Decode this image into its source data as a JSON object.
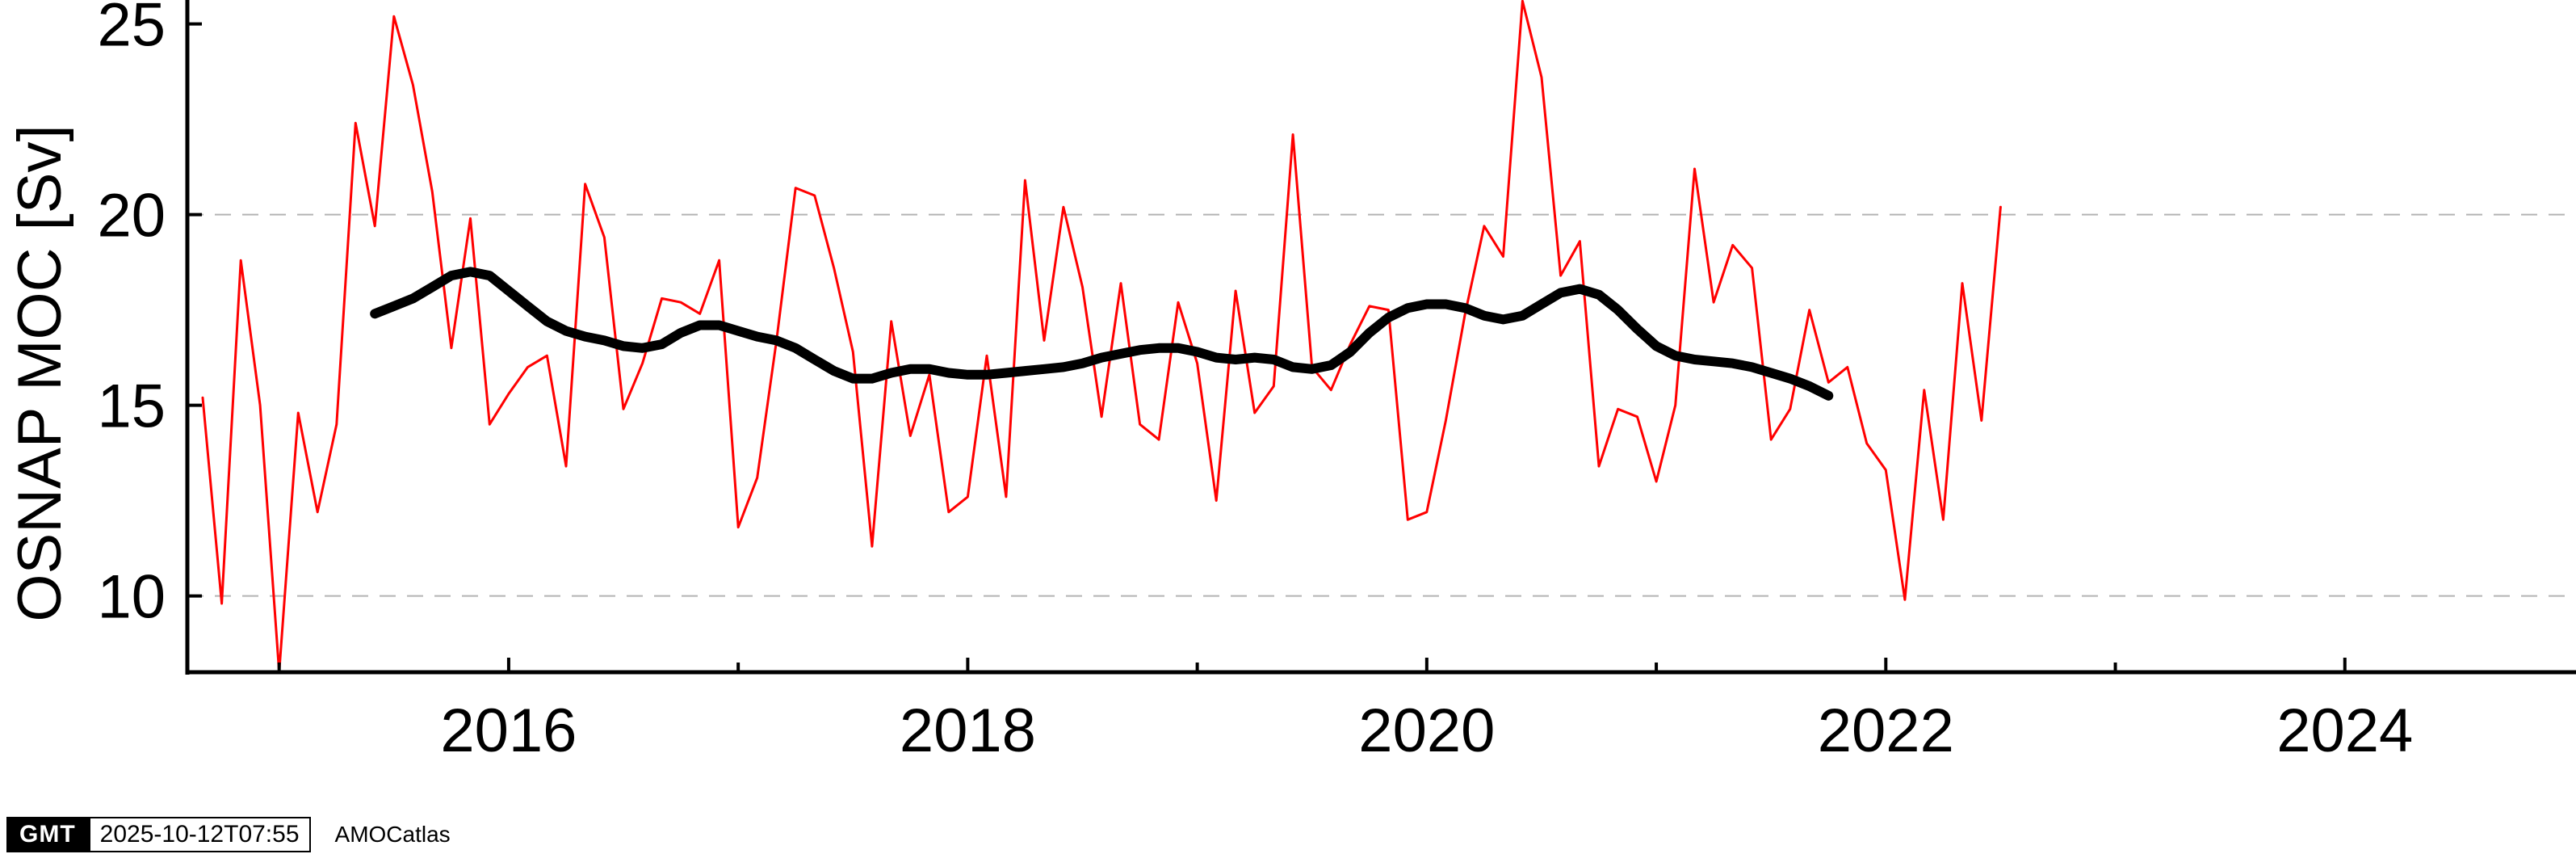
{
  "chart_data": {
    "type": "line",
    "ylabel": "OSNAP MOC [Sv]",
    "xlim": [
      2014.6,
      2025.0
    ],
    "ylim": [
      8,
      25.5
    ],
    "yticks": [
      10,
      15,
      20,
      25
    ],
    "xticks_major": [
      2016,
      2018,
      2020,
      2022,
      2024
    ],
    "xticks_minor": [
      2015,
      2017,
      2019,
      2021,
      2023
    ],
    "grid": "horizontal dashed at 10 and 20",
    "series": [
      {
        "color": "#ff0000",
        "x": [
          2014.667,
          2014.75,
          2014.833,
          2014.917,
          2015.0,
          2015.083,
          2015.167,
          2015.25,
          2015.333,
          2015.417,
          2015.5,
          2015.583,
          2015.667,
          2015.75,
          2015.833,
          2015.917,
          2016.0,
          2016.083,
          2016.167,
          2016.25,
          2016.333,
          2016.417,
          2016.5,
          2016.583,
          2016.667,
          2016.75,
          2016.833,
          2016.917,
          2017.0,
          2017.083,
          2017.167,
          2017.25,
          2017.333,
          2017.417,
          2017.5,
          2017.583,
          2017.667,
          2017.75,
          2017.833,
          2017.917,
          2018.0,
          2018.083,
          2018.167,
          2018.25,
          2018.333,
          2018.417,
          2018.5,
          2018.583,
          2018.667,
          2018.75,
          2018.833,
          2018.917,
          2019.0,
          2019.083,
          2019.167,
          2019.25,
          2019.333,
          2019.417,
          2019.5,
          2019.583,
          2019.667,
          2019.75,
          2019.833,
          2019.917,
          2020.0,
          2020.083,
          2020.167,
          2020.25,
          2020.333,
          2020.417,
          2020.5,
          2020.583,
          2020.667,
          2020.75,
          2020.833,
          2020.917,
          2021.0,
          2021.083,
          2021.167,
          2021.25,
          2021.333,
          2021.417,
          2021.5,
          2021.583,
          2021.667,
          2021.75,
          2021.833,
          2021.917,
          2022.0,
          2022.083,
          2022.167,
          2022.25,
          2022.333,
          2022.417,
          2022.5
        ],
        "y": [
          15.2,
          9.8,
          18.8,
          15.0,
          8.0,
          14.8,
          12.2,
          14.5,
          22.4,
          19.7,
          25.2,
          23.4,
          20.6,
          16.5,
          19.9,
          14.5,
          15.3,
          16.0,
          16.3,
          13.4,
          20.8,
          19.4,
          14.9,
          16.1,
          17.8,
          17.7,
          17.4,
          18.8,
          11.8,
          13.1,
          16.7,
          20.7,
          20.5,
          18.6,
          16.4,
          11.3,
          17.2,
          14.2,
          15.8,
          12.2,
          12.6,
          16.3,
          12.6,
          20.9,
          16.7,
          20.2,
          18.1,
          14.7,
          18.2,
          14.5,
          14.1,
          17.7,
          16.1,
          12.5,
          18.0,
          14.8,
          15.5,
          22.1,
          16.0,
          15.4,
          16.6,
          17.6,
          17.5,
          12.0,
          12.2,
          14.6,
          17.4,
          19.7,
          18.9,
          25.6,
          23.6,
          18.4,
          19.3,
          13.4,
          14.9,
          14.7,
          13.0,
          15.0,
          21.2,
          17.7,
          19.2,
          18.6,
          14.1,
          14.9,
          17.5,
          15.6,
          16.0,
          14.0,
          13.3,
          9.9,
          15.4,
          12.0,
          18.2,
          14.6,
          20.2
        ]
      },
      {
        "color": "#000000",
        "x": [
          2015.417,
          2015.5,
          2015.583,
          2015.667,
          2015.75,
          2015.833,
          2015.917,
          2016.0,
          2016.083,
          2016.167,
          2016.25,
          2016.333,
          2016.417,
          2016.5,
          2016.583,
          2016.667,
          2016.75,
          2016.833,
          2016.917,
          2017.0,
          2017.083,
          2017.167,
          2017.25,
          2017.333,
          2017.417,
          2017.5,
          2017.583,
          2017.667,
          2017.75,
          2017.833,
          2017.917,
          2018.0,
          2018.083,
          2018.167,
          2018.25,
          2018.333,
          2018.417,
          2018.5,
          2018.583,
          2018.667,
          2018.75,
          2018.833,
          2018.917,
          2019.0,
          2019.083,
          2019.167,
          2019.25,
          2019.333,
          2019.417,
          2019.5,
          2019.583,
          2019.667,
          2019.75,
          2019.833,
          2019.917,
          2020.0,
          2020.083,
          2020.167,
          2020.25,
          2020.333,
          2020.417,
          2020.5,
          2020.583,
          2020.667,
          2020.75,
          2020.833,
          2020.917,
          2021.0,
          2021.083,
          2021.167,
          2021.25,
          2021.333,
          2021.417,
          2021.5,
          2021.583,
          2021.667,
          2021.75
        ],
        "y": [
          17.4,
          17.6,
          17.8,
          18.1,
          18.4,
          18.5,
          18.4,
          18.0,
          17.6,
          17.2,
          16.95,
          16.8,
          16.7,
          16.55,
          16.5,
          16.6,
          16.9,
          17.1,
          17.1,
          16.95,
          16.8,
          16.7,
          16.5,
          16.2,
          15.9,
          15.7,
          15.7,
          15.85,
          15.95,
          15.95,
          15.85,
          15.8,
          15.8,
          15.85,
          15.9,
          15.95,
          16.0,
          16.1,
          16.25,
          16.35,
          16.45,
          16.5,
          16.5,
          16.4,
          16.25,
          16.2,
          16.25,
          16.2,
          16.0,
          15.95,
          16.05,
          16.4,
          16.9,
          17.3,
          17.55,
          17.65,
          17.65,
          17.55,
          17.35,
          17.25,
          17.35,
          17.65,
          17.95,
          18.05,
          17.9,
          17.5,
          17.0,
          16.55,
          16.3,
          16.2,
          16.15,
          16.1,
          16.0,
          15.85,
          15.7,
          15.5,
          15.25
        ]
      }
    ]
  },
  "footer": {
    "logo_text": "GMT",
    "timestamp": "2025-10-12T07:55",
    "label": "AMOCatlas"
  }
}
